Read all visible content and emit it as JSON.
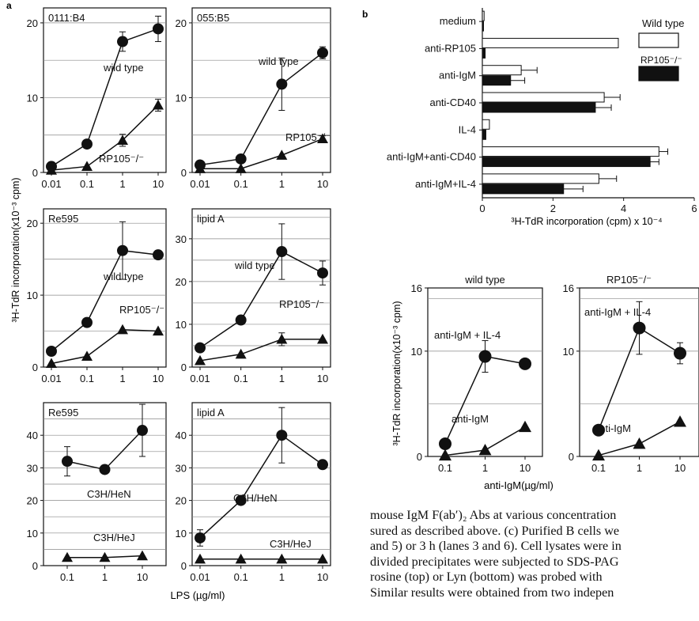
{
  "panel_labels": {
    "a": "a",
    "b": "b"
  },
  "a": {
    "ylabel_main": "³H-TdR incorporation(x10⁻³ cpm)",
    "xlabel": "LPS (µg/ml)"
  },
  "b": {
    "xlabel": "³H-TdR incorporation (cpm) x 10⁻⁴"
  },
  "c": {
    "ylabel": "³H-TdR incorporation(x10⁻³ cpm)",
    "xlabel": "anti-IgM(µg/ml)"
  },
  "caption_lines": [
    "mouse IgM F(ab′)₂ Abs at various concentration",
    "sured as described above. (c) Purified B cells we",
    "and 5) or 3 h (lanes 3 and 6). Cell lysates were in",
    "divided precipitates were subjected to SDS-PAG",
    "rosine (top) or Lyn (bottom) was probed with",
    "Similar results were obtained from two indepen"
  ],
  "colors": {
    "ink": "#111111",
    "grid": "#8a8a8a",
    "bar_wt": "#ffffff",
    "bar_ko": "#111111"
  },
  "chart_data": [
    {
      "type": "line",
      "panel": "a",
      "title": "0111:B4",
      "x": [
        "0.01",
        "0.1",
        "1",
        "10"
      ],
      "ylim": [
        0,
        22
      ],
      "yticks": [
        0,
        10,
        20
      ],
      "series": [
        {
          "name": "wild type",
          "marker": "circle",
          "values": [
            0.8,
            3.8,
            17.5,
            19.2
          ],
          "err": [
            0,
            0,
            1.3,
            1.7
          ]
        },
        {
          "name": "RP105⁻/⁻",
          "marker": "triangle",
          "values": [
            0.3,
            0.8,
            4.3,
            9.0
          ],
          "err": [
            0,
            0,
            0.8,
            0.8
          ]
        }
      ]
    },
    {
      "type": "line",
      "panel": "a",
      "title": "055:B5",
      "x": [
        "0.01",
        "0.1",
        "1",
        "10"
      ],
      "ylim": [
        0,
        22
      ],
      "yticks": [
        0,
        10,
        20
      ],
      "series": [
        {
          "name": "wild type",
          "marker": "circle",
          "values": [
            1.0,
            1.8,
            11.8,
            16.0
          ],
          "err": [
            0,
            0,
            3.5,
            0.8
          ]
        },
        {
          "name": "RP105⁻/⁻",
          "marker": "triangle",
          "values": [
            0.5,
            0.5,
            2.3,
            4.5
          ],
          "err": [
            0,
            0,
            0,
            0.4
          ]
        }
      ]
    },
    {
      "type": "line",
      "panel": "a",
      "title": "Re595",
      "x": [
        "0.01",
        "0.1",
        "1",
        "10"
      ],
      "ylim": [
        0,
        22
      ],
      "yticks": [
        0,
        10,
        20
      ],
      "series": [
        {
          "name": "wild type",
          "marker": "circle",
          "values": [
            2.2,
            6.2,
            16.2,
            15.6
          ],
          "err": [
            0,
            0,
            4.0,
            0
          ]
        },
        {
          "name": "RP105⁻/⁻",
          "marker": "triangle",
          "values": [
            0.5,
            1.5,
            5.2,
            5.0
          ],
          "err": [
            0,
            0,
            0,
            0
          ]
        }
      ]
    },
    {
      "type": "line",
      "panel": "a",
      "title": "lipid A",
      "x": [
        "0.01",
        "0.1",
        "1",
        "10"
      ],
      "ylim": [
        0,
        37
      ],
      "yticks": [
        0,
        10,
        20,
        30
      ],
      "series": [
        {
          "name": "wild type",
          "marker": "circle",
          "values": [
            4.5,
            11.0,
            27.0,
            22.0
          ],
          "err": [
            0,
            0,
            6.5,
            2.8
          ]
        },
        {
          "name": "RP105⁻/⁻",
          "marker": "triangle",
          "values": [
            1.5,
            3.0,
            6.5,
            6.5
          ],
          "err": [
            0,
            0,
            1.5,
            0
          ]
        }
      ]
    },
    {
      "type": "line",
      "panel": "a",
      "title": "Re595",
      "x": [
        "0.1",
        "1",
        "10"
      ],
      "ylim": [
        0,
        50
      ],
      "yticks": [
        0,
        10,
        20,
        30,
        40
      ],
      "series": [
        {
          "name": "C3H/HeN",
          "marker": "circle",
          "values": [
            32.0,
            29.5,
            41.5
          ],
          "err": [
            4.5,
            0,
            8.0
          ]
        },
        {
          "name": "C3H/HeJ",
          "marker": "triangle",
          "values": [
            2.5,
            2.5,
            3.0
          ],
          "err": [
            0,
            0,
            0
          ]
        }
      ]
    },
    {
      "type": "line",
      "panel": "a",
      "title": "lipid A",
      "x": [
        "0.01",
        "0.1",
        "1",
        "10"
      ],
      "ylim": [
        0,
        50
      ],
      "yticks": [
        0,
        10,
        20,
        30,
        40
      ],
      "series": [
        {
          "name": "C3H/HeN",
          "marker": "circle",
          "values": [
            8.5,
            20.0,
            40.0,
            31.0
          ],
          "err": [
            2.5,
            0,
            8.5,
            0
          ]
        },
        {
          "name": "C3H/HeJ",
          "marker": "triangle",
          "values": [
            2.0,
            2.0,
            2.0,
            2.0
          ],
          "err": [
            0,
            0,
            0,
            0
          ]
        }
      ]
    },
    {
      "type": "bar",
      "panel": "b",
      "orientation": "horizontal",
      "categories": [
        "medium",
        "anti-RP105",
        "anti-IgM",
        "anti-CD40",
        "IL-4",
        "anti-IgM+anti-CD40",
        "anti-IgM+IL-4"
      ],
      "xlim": [
        0,
        6
      ],
      "xticks": [
        0,
        2,
        4,
        6
      ],
      "series": [
        {
          "name": "Wild type",
          "values": [
            0.05,
            3.85,
            1.1,
            3.45,
            0.2,
            5.0,
            3.3
          ],
          "err": [
            0,
            0,
            0.45,
            0.45,
            0,
            0.25,
            0.5
          ]
        },
        {
          "name": "RP105⁻/⁻",
          "values": [
            0.03,
            0.08,
            0.8,
            3.2,
            0.1,
            4.75,
            2.3
          ],
          "err": [
            0,
            0,
            0.4,
            0.45,
            0,
            0.25,
            0.55
          ]
        }
      ]
    },
    {
      "type": "line",
      "panel": "c",
      "title": "wild type",
      "x": [
        "0.1",
        "1",
        "10"
      ],
      "ylim": [
        0,
        16
      ],
      "yticks": [
        0,
        10,
        16
      ],
      "series": [
        {
          "name": "anti-IgM + IL-4",
          "marker": "circle",
          "values": [
            1.2,
            9.5,
            8.8
          ],
          "err": [
            0,
            1.5,
            0
          ]
        },
        {
          "name": "anti-IgM",
          "marker": "triangle",
          "values": [
            0.1,
            0.6,
            2.8
          ],
          "err": [
            0,
            0,
            0
          ]
        }
      ]
    },
    {
      "type": "line",
      "panel": "c",
      "title": "RP105⁻/⁻",
      "x": [
        "0.1",
        "1",
        "10"
      ],
      "ylim": [
        0,
        16
      ],
      "yticks": [
        0,
        10,
        16
      ],
      "series": [
        {
          "name": "anti-IgM + IL-4",
          "marker": "circle",
          "values": [
            2.5,
            12.2,
            9.8
          ],
          "err": [
            0,
            2.5,
            1.0
          ]
        },
        {
          "name": "anti-IgM",
          "marker": "triangle",
          "values": [
            0.1,
            1.2,
            3.3
          ],
          "err": [
            0,
            0,
            0
          ]
        }
      ]
    }
  ]
}
